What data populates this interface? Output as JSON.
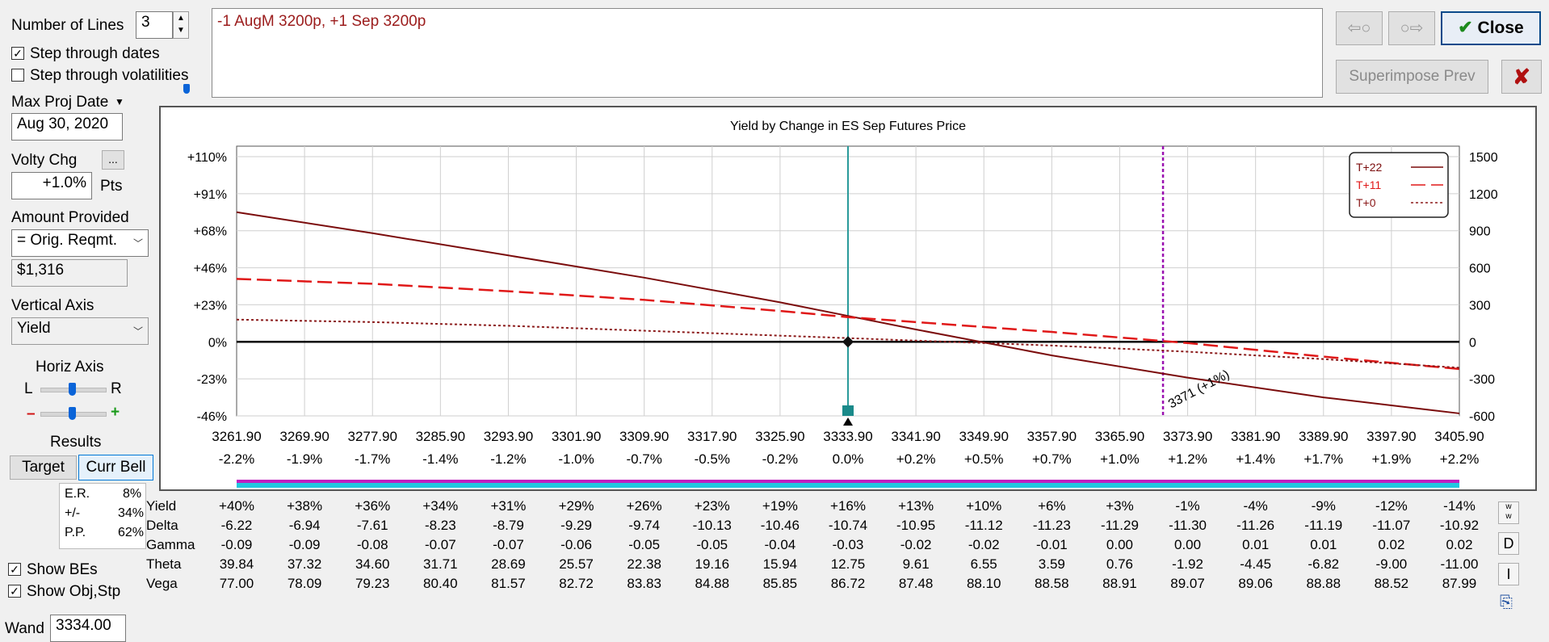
{
  "controls": {
    "num_lines_label": "Number of Lines",
    "num_lines_value": "3",
    "step_dates_label": "Step through dates",
    "step_vols_label": "Step through volatilities",
    "max_proj_label": "Max Proj Date",
    "max_proj_value": "Aug 30, 2020",
    "volty_label": "Volty Chg",
    "volty_btn": "...",
    "volty_value": "+1.0%",
    "volty_unit": "Pts",
    "amount_label": "Amount Provided",
    "amount_select": "= Orig. Reqmt.",
    "amount_value": "$1,316",
    "vaxis_label": "Vertical Axis",
    "vaxis_select": "Yield",
    "haxis_label": "Horiz Axis",
    "haxis_left": "L",
    "haxis_right": "R",
    "minus": "–",
    "plus": "+",
    "results_label": "Results",
    "target_btn": "Target",
    "currbell_btn": "Curr Bell",
    "er_label": "E.R.",
    "er_value": "8%",
    "pm_label": "+/-",
    "pm_value": "34%",
    "pp_label": "P.P.",
    "pp_value": "62%",
    "show_bes_label": "Show BEs",
    "show_obj_label": "Show Obj,Stp",
    "wand_label": "Wand",
    "wand_value": "3334.00"
  },
  "position_text": "-1 AugM 3200p, +1 Sep 3200p",
  "buttons": {
    "prev_icon": "⇦○",
    "next_icon": "○⇨",
    "close_label": "Close",
    "superimpose_label": "Superimpose Prev",
    "x_icon": "✘"
  },
  "side_buttons": {
    "w": "w\nw",
    "d": "D",
    "i": "I",
    "export": "⎘"
  },
  "chart_data": {
    "type": "line",
    "title": "Yield by Change in ES Sep Futures Price",
    "x_ticks": [
      "3261.90",
      "3269.90",
      "3277.90",
      "3285.90",
      "3293.90",
      "3301.90",
      "3309.90",
      "3317.90",
      "3325.90",
      "3333.90",
      "3341.90",
      "3349.90",
      "3357.90",
      "3365.90",
      "3373.90",
      "3381.90",
      "3389.90",
      "3397.90",
      "3405.90"
    ],
    "x_pct_ticks": [
      "-2.2%",
      "-1.9%",
      "-1.7%",
      "-1.4%",
      "-1.2%",
      "-1.0%",
      "-0.7%",
      "-0.5%",
      "-0.2%",
      "0.0%",
      "+0.2%",
      "+0.5%",
      "+0.7%",
      "+1.0%",
      "+1.2%",
      "+1.4%",
      "+1.7%",
      "+1.9%",
      "+2.2%"
    ],
    "xlim": [
      3261.9,
      3405.9
    ],
    "y_left_ticks": [
      "+110%",
      "+91%",
      "+68%",
      "+46%",
      "+23%",
      "0%",
      "-23%",
      "-46%"
    ],
    "y_right_ticks": [
      "1500",
      "1200",
      "900",
      "600",
      "300",
      "0",
      "-300",
      "-600"
    ],
    "ylim": [
      -600,
      1500
    ],
    "grid": true,
    "legend_position": "top-right",
    "series": [
      {
        "name": "T+22",
        "color": "#7b0c0c",
        "dash": "solid",
        "x": [
          3261.9,
          3277.9,
          3293.9,
          3309.9,
          3325.9,
          3333.9,
          3341.9,
          3357.9,
          3373.9,
          3389.9,
          3405.9
        ],
        "y": [
          1050,
          880,
          700,
          520,
          320,
          210,
          100,
          -110,
          -290,
          -450,
          -580
        ]
      },
      {
        "name": "T+11",
        "color": "#e01818",
        "dash": "long",
        "x": [
          3261.9,
          3277.9,
          3293.9,
          3309.9,
          3325.9,
          3333.9,
          3341.9,
          3357.9,
          3373.9,
          3389.9,
          3405.9
        ],
        "y": [
          510,
          470,
          410,
          340,
          250,
          200,
          160,
          80,
          -10,
          -120,
          -220
        ]
      },
      {
        "name": "T+0",
        "color": "#8b1a1a",
        "dash": "dotted",
        "x": [
          3261.9,
          3277.9,
          3293.9,
          3309.9,
          3325.9,
          3333.9,
          3341.9,
          3357.9,
          3373.9,
          3389.9,
          3405.9
        ],
        "y": [
          180,
          160,
          130,
          90,
          50,
          30,
          10,
          -30,
          -80,
          -140,
          -210
        ]
      }
    ],
    "current_price": 3333.9,
    "target_price": 3371,
    "target_label": "3371 (+1%)"
  },
  "table": {
    "columns": 19,
    "rows": [
      {
        "name": "Yield",
        "values": [
          "+40%",
          "+38%",
          "+36%",
          "+34%",
          "+31%",
          "+29%",
          "+26%",
          "+23%",
          "+19%",
          "+16%",
          "+13%",
          "+10%",
          "+6%",
          "+3%",
          "-1%",
          "-4%",
          "-9%",
          "-12%",
          "-14%"
        ]
      },
      {
        "name": "Delta",
        "values": [
          "-6.22",
          "-6.94",
          "-7.61",
          "-8.23",
          "-8.79",
          "-9.29",
          "-9.74",
          "-10.13",
          "-10.46",
          "-10.74",
          "-10.95",
          "-11.12",
          "-11.23",
          "-11.29",
          "-11.30",
          "-11.26",
          "-11.19",
          "-11.07",
          "-10.92"
        ]
      },
      {
        "name": "Gamma",
        "values": [
          "-0.09",
          "-0.09",
          "-0.08",
          "-0.07",
          "-0.07",
          "-0.06",
          "-0.05",
          "-0.05",
          "-0.04",
          "-0.03",
          "-0.02",
          "-0.02",
          "-0.01",
          "0.00",
          "0.00",
          "0.01",
          "0.01",
          "0.02",
          "0.02"
        ]
      },
      {
        "name": "Theta",
        "values": [
          "39.84",
          "37.32",
          "34.60",
          "31.71",
          "28.69",
          "25.57",
          "22.38",
          "19.16",
          "15.94",
          "12.75",
          "9.61",
          "6.55",
          "3.59",
          "0.76",
          "-1.92",
          "-4.45",
          "-6.82",
          "-9.00",
          "-11.00"
        ]
      },
      {
        "name": "Vega",
        "values": [
          "77.00",
          "78.09",
          "79.23",
          "80.40",
          "81.57",
          "82.72",
          "83.83",
          "84.88",
          "85.85",
          "86.72",
          "87.48",
          "88.10",
          "88.58",
          "88.91",
          "89.07",
          "89.06",
          "88.88",
          "88.52",
          "87.99"
        ]
      }
    ]
  }
}
